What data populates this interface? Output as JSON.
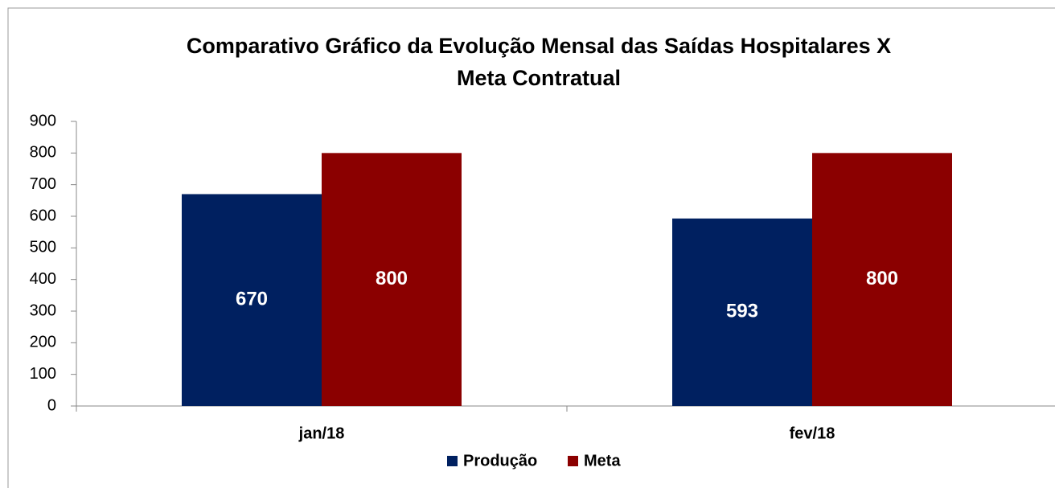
{
  "chart_data": {
    "type": "bar",
    "title": [
      "Comparativo Gráfico da Evolução Mensal das Saídas Hospitalares X",
      "Meta Contratual"
    ],
    "categories": [
      "jan/18",
      "fev/18"
    ],
    "series": [
      {
        "name": "Produção",
        "color": "#002060",
        "values": [
          670,
          593
        ]
      },
      {
        "name": "Meta",
        "color": "#8b0000",
        "values": [
          800,
          800
        ]
      }
    ],
    "ylim": [
      0,
      900
    ],
    "yticks": [
      0,
      100,
      200,
      300,
      400,
      500,
      600,
      700,
      800,
      900
    ],
    "grid": false,
    "legend": "bottom"
  }
}
